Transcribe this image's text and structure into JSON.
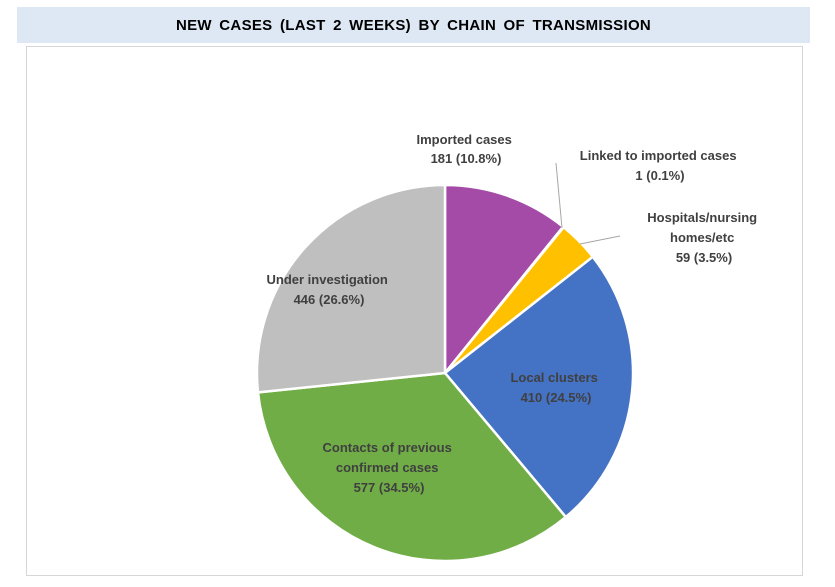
{
  "chart_data": {
    "type": "pie",
    "title": "NEW CASES (LAST 2 WEEKS) BY CHAIN OF TRANSMISSION",
    "slices": [
      {
        "label": "Imported cases",
        "value": 181,
        "percent": 10.8,
        "value_text": "181 (10.8%)",
        "color": "#a44ba8"
      },
      {
        "label": "Linked to imported cases",
        "value": 1,
        "percent": 0.1,
        "value_text": "1 (0.1%)",
        "color": "#ed7d31"
      },
      {
        "label": "Hospitals/nursing homes/etc",
        "value": 59,
        "percent": 3.5,
        "value_text": "59 (3.5%)",
        "color": "#ffc000"
      },
      {
        "label": "Local clusters",
        "value": 410,
        "percent": 24.5,
        "value_text": "410 (24.5%)",
        "color": "#4472c4"
      },
      {
        "label": "Contacts of previous confirmed cases",
        "value": 577,
        "percent": 34.5,
        "value_text": "577 (34.5%)",
        "color": "#70ad47"
      },
      {
        "label": "Under investigation",
        "value": 446,
        "percent": 26.6,
        "value_text": "446 (26.6%)",
        "color": "#bfbfbf"
      }
    ],
    "label_lines": {
      "imported": [
        "Imported cases",
        "181 (10.8%)"
      ],
      "linked": [
        "Linked to imported cases",
        "1 (0.1%)"
      ],
      "hospitals": [
        "Hospitals/nursing",
        "homes/etc",
        "59 (3.5%)"
      ],
      "local": [
        "Local clusters",
        "410 (24.5%)"
      ],
      "contacts": [
        "Contacts of previous",
        "confirmed cases",
        "577 (34.5%)"
      ],
      "under": [
        "Under investigation",
        "446 (26.6%)"
      ]
    },
    "start_angle_deg": 0,
    "direction": "clockwise",
    "legend": "none"
  }
}
